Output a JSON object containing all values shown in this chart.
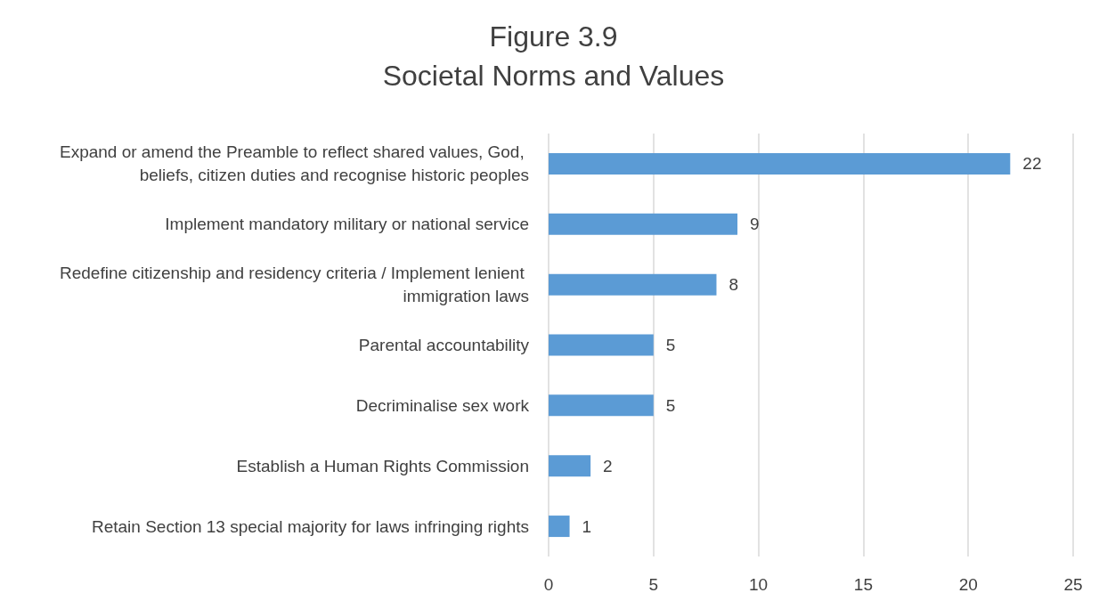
{
  "chart_data": {
    "type": "bar",
    "orientation": "horizontal",
    "title": "Figure 3.9",
    "subtitle": "Societal Norms and Values",
    "categories": [
      "Expand or amend the Preamble to reflect shared values, God, beliefs, citizen duties and recognise historic peoples",
      "Implement mandatory military or national service",
      "Redefine citizenship and residency criteria / Implement lenient immigration laws",
      "Parental accountability",
      "Decriminalise sex work",
      "Establish a Human Rights Commission",
      "Retain Section 13 special majority for laws infringing rights"
    ],
    "values": [
      22,
      9,
      8,
      5,
      5,
      2,
      1
    ],
    "color": "#5b9bd5",
    "xlim": [
      0,
      25
    ],
    "xticks": [
      0,
      5,
      10,
      15,
      20,
      25
    ],
    "grid": "x",
    "data_labels": true
  }
}
